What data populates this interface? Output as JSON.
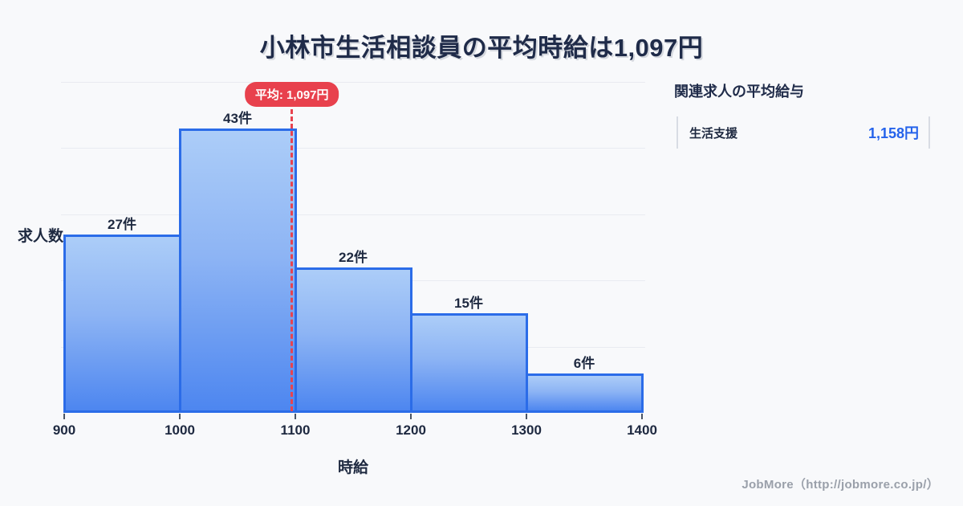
{
  "page": {
    "background": "#f8f9fb",
    "title": "小林市生活相談員の平均時給は1,097円"
  },
  "chart_data": {
    "type": "bar",
    "title": "小林市生活相談員の平均時給は1,097円",
    "categories": [
      "900-1000",
      "1000-1100",
      "1100-1200",
      "1200-1300",
      "1300-1400"
    ],
    "values": [
      27,
      43,
      22,
      15,
      6
    ],
    "value_labels": [
      "27件",
      "43件",
      "22件",
      "15件",
      "6件"
    ],
    "bin_edges": [
      900,
      1000,
      1100,
      1200,
      1300,
      1400
    ],
    "x_tick_labels": [
      "900",
      "1000",
      "1100",
      "1200",
      "1300",
      "1400"
    ],
    "xlabel": "時給",
    "ylabel": "求人数",
    "xlim": [
      900,
      1400
    ],
    "ylim": [
      0,
      50
    ],
    "grid": "horizontal gridlines every 10",
    "legend": "none",
    "mean_line": {
      "x": 1097,
      "label": "平均: 1,097円",
      "line_color": "#e8434f",
      "badge_color": "#e8414d"
    },
    "colors": {
      "bar_fill_top": "#accdf8",
      "bar_fill_bottom": "#4d86f0",
      "bar_border": "#2b6ce8",
      "grid_line": "#e9ebf1",
      "text": "#1e2940"
    }
  },
  "side_panel": {
    "heading": "関連求人の平均給与",
    "rows": [
      {
        "label": "生活支援",
        "value": "1,158円",
        "value_color": "#2563eb"
      }
    ]
  },
  "footer": {
    "credit": "JobMore（http://jobmore.co.jp/）"
  }
}
